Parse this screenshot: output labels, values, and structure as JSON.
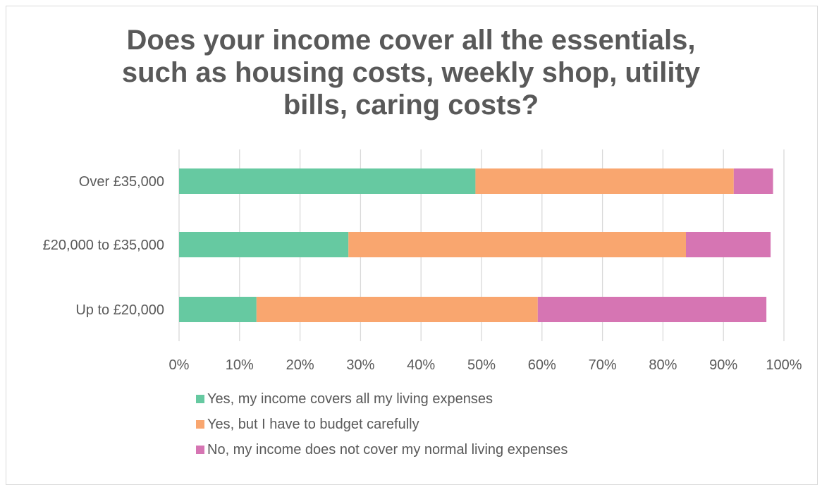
{
  "chart_data": {
    "type": "bar",
    "orientation": "horizontal",
    "stacked": true,
    "title": "Does your income cover all the essentials, such as housing costs, weekly shop, utility bills, caring costs?",
    "title_lines": [
      "Does your income cover all the essentials,",
      "such as housing costs, weekly shop, utility",
      "bills, caring costs?"
    ],
    "categories": [
      "Over £35,000",
      "£20,000 to £35,000",
      "Up to £20,000"
    ],
    "series": [
      {
        "name": "Yes, my income covers all my living expenses",
        "color": "#66c9a1",
        "values": [
          49,
          28,
          12.8
        ]
      },
      {
        "name": "Yes, but I have to budget carefully",
        "color": "#f9a66f",
        "values": [
          42.7,
          55.8,
          46.5
        ]
      },
      {
        "name": "No, my income does not cover my normal living expenses",
        "color": "#d675b3",
        "values": [
          6.5,
          14,
          37.8
        ]
      }
    ],
    "xlim": [
      0,
      100
    ],
    "x_ticks": [
      "0%",
      "10%",
      "20%",
      "30%",
      "40%",
      "50%",
      "60%",
      "70%",
      "80%",
      "90%",
      "100%"
    ],
    "xlabel": "",
    "ylabel": "",
    "grid": true,
    "legend_position": "bottom"
  }
}
